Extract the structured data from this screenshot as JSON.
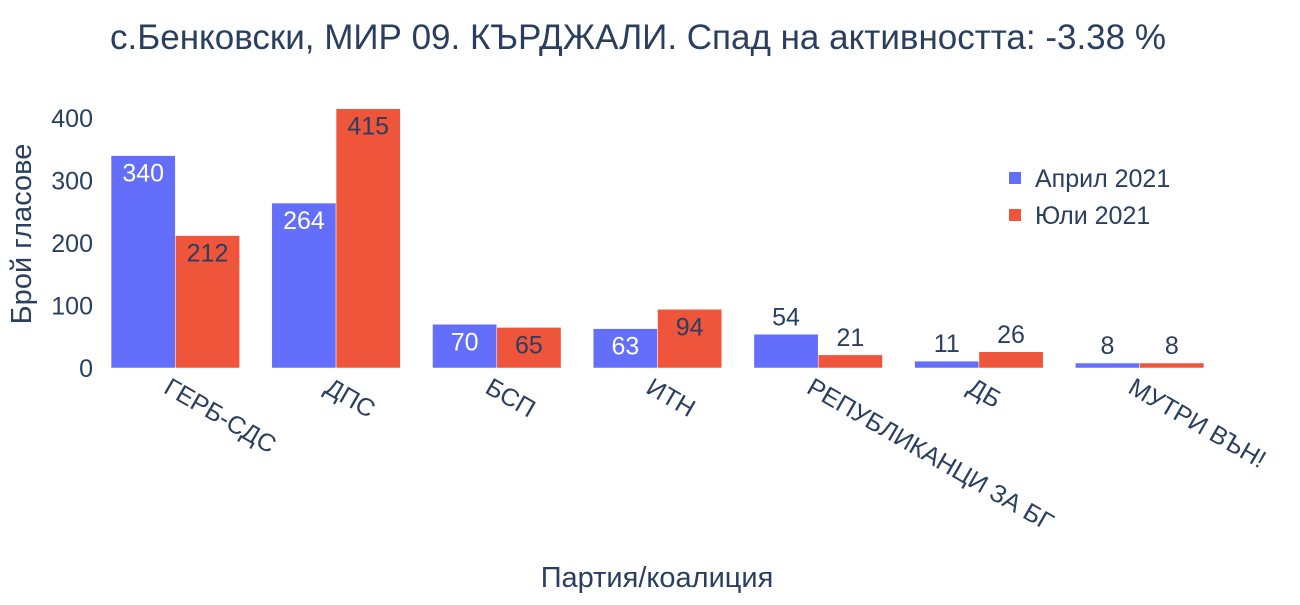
{
  "chart_data": {
    "type": "bar",
    "title": "с.Бенковски, МИР 09. КЪРДЖАЛИ. Спад на активността: -3.38 %",
    "xlabel": "Партия/коалиция",
    "ylabel": "Брой гласове",
    "categories": [
      "ГЕРБ-СДС",
      "ДПС",
      "БСП",
      "ИТН",
      "РЕПУБЛИКАНЦИ ЗА БГ",
      "ДБ",
      "МУТРИ ВЪН!"
    ],
    "series": [
      {
        "name": "Април 2021",
        "color": "#636EFA",
        "values": [
          340,
          264,
          70,
          63,
          54,
          11,
          8
        ]
      },
      {
        "name": "Юли 2021",
        "color": "#EF553B",
        "values": [
          212,
          415,
          65,
          94,
          21,
          26,
          8
        ]
      }
    ],
    "ylim": [
      0,
      437
    ],
    "yticks": [
      0,
      100,
      200,
      300,
      400
    ],
    "grid": false,
    "legend": "top-right"
  }
}
